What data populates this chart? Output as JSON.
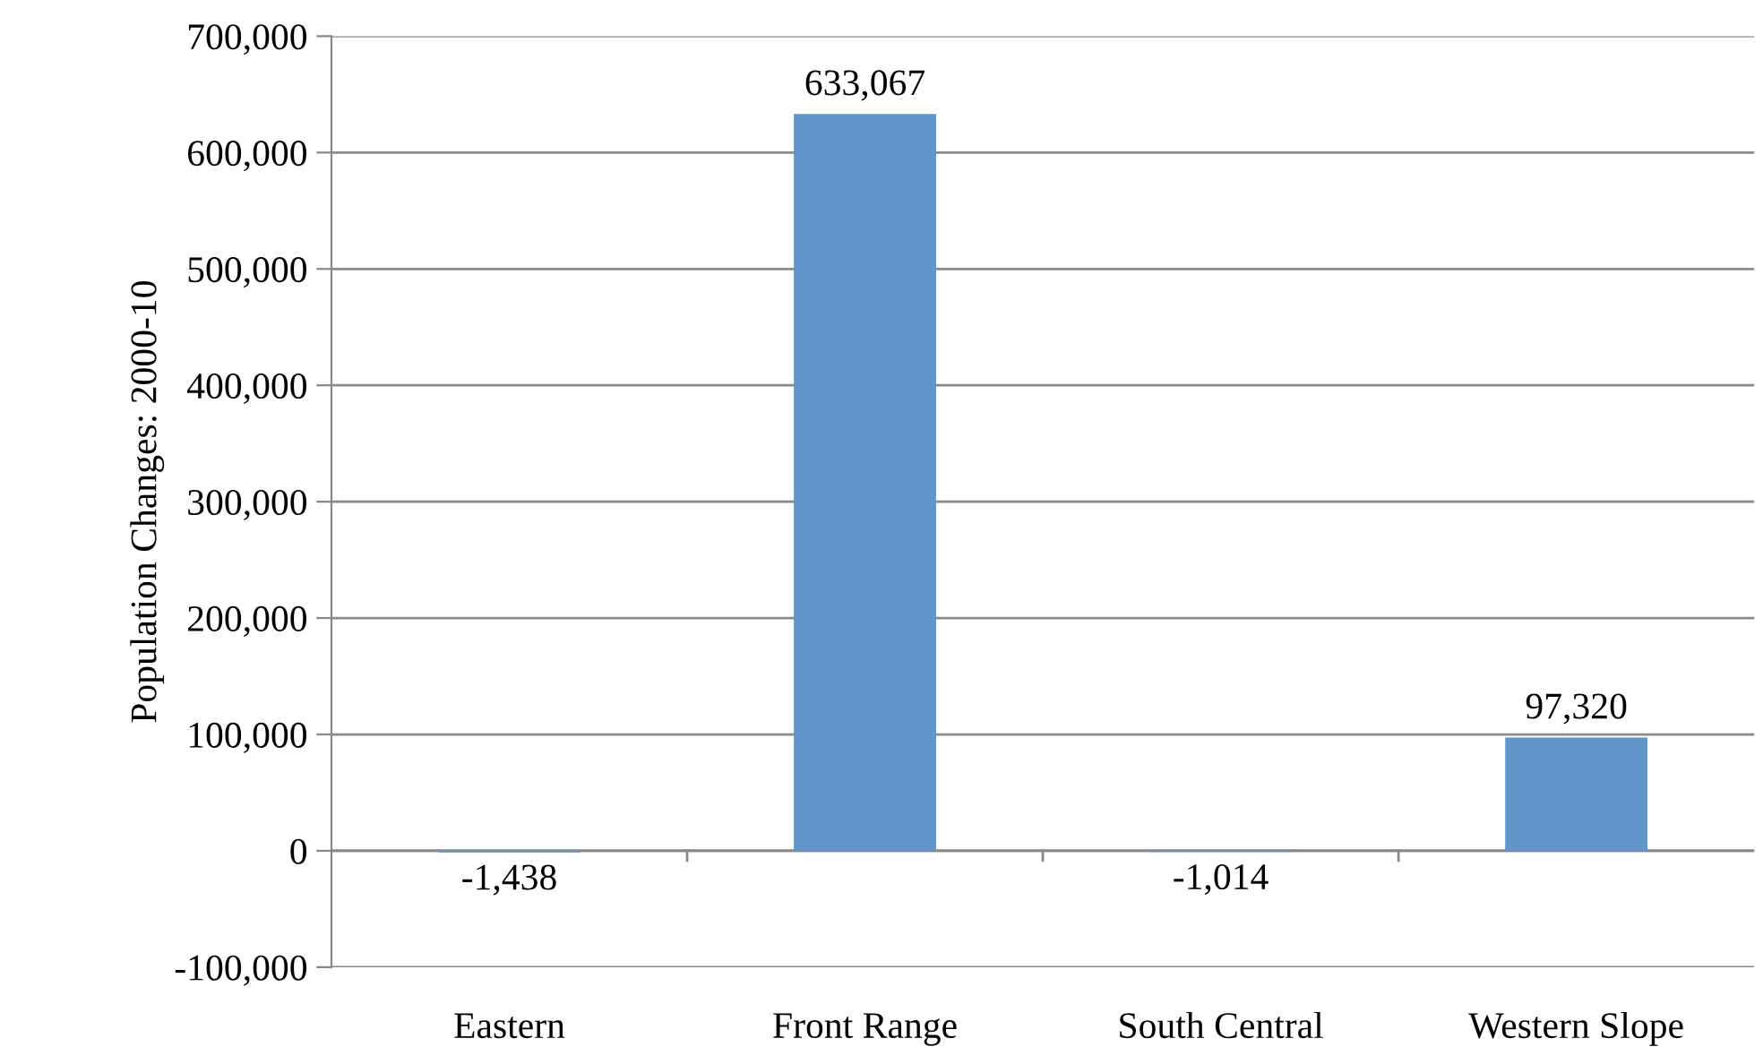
{
  "chart_data": {
    "type": "bar",
    "ylabel": "Population Changes: 2000-10",
    "categories": [
      "Eastern",
      "Front Range",
      "South Central",
      "Western Slope"
    ],
    "values": [
      -1438,
      633067,
      -1014,
      97320
    ],
    "value_labels": [
      "-1,438",
      "633,067",
      "-1,014",
      "97,320"
    ],
    "color": "#6096c9",
    "ylim": [
      -100000,
      700000
    ],
    "yticks": [
      {
        "value": -100000,
        "label": "-100,000"
      },
      {
        "value": 0,
        "label": "0"
      },
      {
        "value": 100000,
        "label": "100,000"
      },
      {
        "value": 200000,
        "label": "200,000"
      },
      {
        "value": 300000,
        "label": "300,000"
      },
      {
        "value": 400000,
        "label": "400,000"
      },
      {
        "value": 500000,
        "label": "500,000"
      },
      {
        "value": 600000,
        "label": "600,000"
      },
      {
        "value": 700000,
        "label": "700,000"
      }
    ],
    "grid": "y"
  }
}
